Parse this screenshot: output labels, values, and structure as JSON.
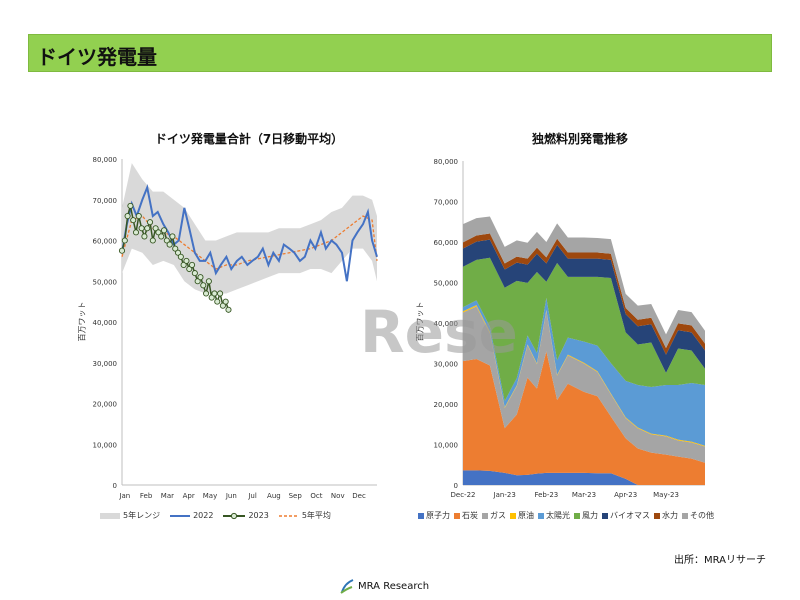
{
  "header": {
    "title": "ドイツ発電量"
  },
  "watermark": "Rese",
  "source": "出所：MRAリサーチ",
  "logo": {
    "text": "MRA Research"
  },
  "colors": {
    "header_bg": "#92d050",
    "range": "#d9d9d9",
    "y2022": "#4472c4",
    "y2023": "#375623",
    "avg5": "#ed7d31"
  },
  "chart_data": [
    {
      "type": "line",
      "title": "ドイツ発電量合計（7日移動平均）",
      "ylabel": "百万ワット",
      "ylim": [
        0,
        80000
      ],
      "yticks": [
        "0",
        "10,000",
        "20,000",
        "30,000",
        "40,000",
        "50,000",
        "60,000",
        "70,000",
        "80,000"
      ],
      "months": [
        "Jan",
        "Feb",
        "Mar",
        "Apr",
        "May",
        "Jun",
        "Jul",
        "Aug",
        "Sep",
        "Oct",
        "Nov",
        "Dec"
      ],
      "x_unit": "day-of-year",
      "xlim": [
        1,
        365
      ],
      "legend": [
        "5年レンジ",
        "2022",
        "2023",
        "5年平均"
      ],
      "range": {
        "x": [
          1,
          15,
          30,
          45,
          60,
          75,
          90,
          105,
          120,
          135,
          150,
          165,
          180,
          195,
          210,
          225,
          240,
          255,
          270,
          285,
          300,
          315,
          330,
          345,
          358,
          365
        ],
        "lo": [
          52000,
          58000,
          57000,
          54000,
          55000,
          54000,
          50000,
          48000,
          47000,
          47000,
          47000,
          48000,
          49000,
          50000,
          51000,
          52000,
          52000,
          52000,
          53000,
          53000,
          52000,
          55000,
          58000,
          58000,
          55000,
          50000
        ],
        "hi": [
          68000,
          79000,
          75000,
          72000,
          72000,
          70000,
          68000,
          64000,
          60000,
          60000,
          61000,
          62000,
          62000,
          62000,
          62000,
          63000,
          63000,
          63000,
          64000,
          65000,
          67000,
          68000,
          71000,
          71000,
          70000,
          66000
        ]
      },
      "series": [
        {
          "name": "2022",
          "x": [
            1,
            8,
            15,
            22,
            30,
            37,
            45,
            52,
            60,
            67,
            75,
            82,
            90,
            97,
            105,
            112,
            120,
            127,
            135,
            142,
            150,
            157,
            165,
            172,
            180,
            187,
            195,
            202,
            210,
            217,
            225,
            232,
            240,
            247,
            255,
            262,
            270,
            277,
            285,
            292,
            300,
            307,
            315,
            322,
            330,
            337,
            345,
            352,
            358,
            365
          ],
          "values": [
            57000,
            64000,
            69000,
            66000,
            70000,
            73000,
            66000,
            67000,
            64000,
            62000,
            59000,
            60000,
            68000,
            63000,
            57000,
            55000,
            55000,
            57000,
            52000,
            54000,
            56000,
            53000,
            55000,
            56000,
            54000,
            55000,
            56000,
            58000,
            54000,
            57000,
            55000,
            59000,
            58000,
            57000,
            55000,
            56000,
            60000,
            58000,
            62000,
            58000,
            60000,
            59000,
            57000,
            50000,
            60000,
            62000,
            64000,
            67000,
            60000,
            56000
          ]
        },
        {
          "name": "2023",
          "x": [
            1,
            5,
            9,
            13,
            17,
            21,
            25,
            29,
            33,
            37,
            41,
            45,
            49,
            53,
            57,
            61,
            65,
            69,
            73,
            77,
            81,
            85,
            89,
            93,
            97,
            101,
            105,
            109,
            113,
            117,
            121,
            125,
            129,
            133,
            137,
            141,
            145,
            149,
            153
          ],
          "values": [
            57500,
            60000,
            66000,
            68500,
            65000,
            62000,
            66000,
            63000,
            61000,
            63000,
            64500,
            60000,
            63000,
            62000,
            61000,
            62500,
            60000,
            59000,
            61000,
            58000,
            57000,
            56000,
            54000,
            55000,
            53000,
            54000,
            52000,
            50000,
            51000,
            49000,
            47000,
            50000,
            46000,
            47000,
            45000,
            47000,
            44000,
            45000,
            43000
          ]
        },
        {
          "name": "5年平均",
          "x": [
            1,
            15,
            30,
            45,
            60,
            75,
            90,
            105,
            120,
            135,
            150,
            165,
            180,
            195,
            210,
            225,
            240,
            255,
            270,
            285,
            300,
            315,
            330,
            345,
            358,
            365
          ],
          "values": [
            56000,
            65000,
            66000,
            63000,
            62000,
            61000,
            59000,
            57000,
            55000,
            53000,
            54000,
            54000,
            55000,
            55500,
            56000,
            56500,
            57000,
            57500,
            58000,
            59000,
            60000,
            62000,
            64000,
            66000,
            65000,
            55000
          ]
        }
      ]
    },
    {
      "type": "area",
      "stacked": true,
      "title": "独燃料別発電推移",
      "ylabel": "百万ワット",
      "ylim": [
        0,
        80000
      ],
      "yticks": [
        "0",
        "10,000",
        "20,000",
        "30,000",
        "40,000",
        "50,000",
        "60,000",
        "70,000",
        "80,000"
      ],
      "x_ticks": [
        "Dec-22",
        "Jan-23",
        "Feb-23",
        "Mar-23",
        "Apr-23",
        "May-23"
      ],
      "x_unit": "days since 2022-12-01",
      "x": [
        0,
        10,
        20,
        31,
        40,
        48,
        55,
        62,
        70,
        78,
        90,
        100,
        110,
        121,
        130,
        140,
        151,
        160,
        170,
        180
      ],
      "series": [
        {
          "name": "原子力",
          "color": "#4472c4",
          "values": [
            3600,
            3600,
            3500,
            3000,
            2400,
            2500,
            2800,
            3000,
            3000,
            3000,
            3000,
            2900,
            2900,
            1500,
            0,
            0,
            0,
            0,
            0,
            0
          ]
        },
        {
          "name": "石炭",
          "color": "#ed7d31",
          "values": [
            27000,
            27500,
            26000,
            11000,
            15000,
            24000,
            21000,
            30000,
            18000,
            22000,
            20000,
            19000,
            14000,
            10000,
            9000,
            8000,
            7500,
            7000,
            6500,
            5500
          ]
        },
        {
          "name": "ガス",
          "color": "#a5a5a5",
          "values": [
            12000,
            13000,
            8000,
            5000,
            7000,
            8000,
            6000,
            10000,
            6000,
            7000,
            7000,
            6000,
            5500,
            5000,
            5000,
            4500,
            4500,
            4000,
            4000,
            4000
          ]
        },
        {
          "name": "原油",
          "color": "#ffc000",
          "values": [
            300,
            300,
            300,
            200,
            200,
            200,
            200,
            200,
            200,
            200,
            200,
            200,
            200,
            200,
            200,
            200,
            200,
            200,
            200,
            200
          ]
        },
        {
          "name": "太陽光",
          "color": "#5b9bd5",
          "values": [
            1000,
            1200,
            1300,
            1500,
            1800,
            2200,
            2600,
            3000,
            3600,
            4200,
            5200,
            6300,
            7500,
            9000,
            10500,
            11500,
            12500,
            13500,
            14500,
            15000
          ]
        },
        {
          "name": "風力",
          "color": "#70ad47",
          "values": [
            10000,
            10000,
            17000,
            28000,
            24000,
            13000,
            20000,
            4000,
            24000,
            15000,
            16000,
            17000,
            21000,
            12000,
            10000,
            11000,
            3000,
            9000,
            8000,
            4000
          ]
        },
        {
          "name": "バイオマス",
          "color": "#264478",
          "values": [
            4500,
            4500,
            4500,
            4500,
            4500,
            4500,
            4500,
            4500,
            4500,
            4500,
            4500,
            4500,
            4500,
            4500,
            4500,
            4500,
            4500,
            4500,
            4500,
            4500
          ]
        },
        {
          "name": "水力",
          "color": "#9e480e",
          "values": [
            1500,
            1500,
            1500,
            1500,
            1500,
            1500,
            1500,
            1500,
            1500,
            1500,
            1500,
            1500,
            1500,
            1500,
            1600,
            1600,
            1600,
            1700,
            1700,
            1700
          ]
        },
        {
          "name": "その他",
          "color": "#a5a5a5",
          "values": [
            4500,
            4300,
            4200,
            4100,
            4000,
            3900,
            3900,
            3800,
            3800,
            3700,
            3700,
            3600,
            3600,
            3500,
            3500,
            3400,
            3400,
            3300,
            3300,
            3200
          ]
        }
      ]
    }
  ]
}
